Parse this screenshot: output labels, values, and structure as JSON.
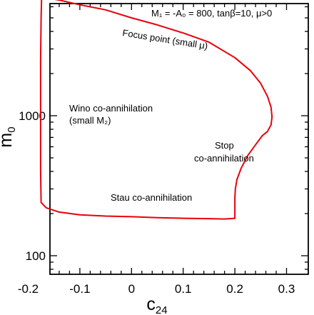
{
  "chart_data": {
    "type": "line",
    "title": "",
    "xlabel": "c",
    "xlabel_sub": "24",
    "ylabel": "m",
    "ylabel_sub": "0",
    "xlim": [
      -0.2,
      0.3
    ],
    "ylim": [
      50,
      8000
    ],
    "y_scale": "log",
    "grid": false,
    "x_ticks": [
      -0.2,
      -0.1,
      0,
      0.1,
      0.2,
      0.3
    ],
    "x_tick_labels": [
      "-0.2",
      "-0.1",
      "0",
      "0.1",
      "0.2",
      "0.3"
    ],
    "y_ticks": [
      100,
      1000
    ],
    "y_tick_labels": [
      "100",
      "1000"
    ],
    "line_color": "#e8000b",
    "series": [
      {
        "x": [
          -0.174,
          -0.17,
          -0.14,
          -0.1,
          -0.05,
          0.0,
          0.05,
          0.1,
          0.15,
          0.2,
          0.23,
          0.25,
          0.263,
          0.27,
          0.272,
          0.27,
          0.263,
          0.253,
          0.24,
          0.225,
          0.212,
          0.204,
          0.201,
          0.2,
          0.2,
          0.18,
          0.15,
          0.1,
          0.05,
          0.0,
          -0.05,
          -0.1,
          -0.14,
          -0.165,
          -0.175,
          -0.176,
          -0.176,
          -0.176,
          -0.175,
          -0.174
        ],
        "y": [
          7000,
          7000,
          6700,
          6200,
          5700,
          5000,
          4450,
          3900,
          3350,
          2600,
          2100,
          1700,
          1380,
          1150,
          980,
          860,
          770,
          720,
          620,
          520,
          420,
          350,
          300,
          260,
          185,
          183,
          184,
          185,
          187,
          190,
          192,
          196,
          205,
          220,
          240,
          400,
          1000,
          2500,
          5000,
          7000
        ]
      }
    ],
    "annotations": [
      {
        "text": "M₁ = -A₀ = 800,  tanβ=10, μ>0"
      },
      {
        "text": "Focus point (small μ)"
      },
      {
        "text": "Wino co-annihilation"
      },
      {
        "text": "(small M₂)"
      },
      {
        "text": "Stop"
      },
      {
        "text": "co-annihilation"
      },
      {
        "text": "Stau co-annihilation"
      }
    ]
  }
}
